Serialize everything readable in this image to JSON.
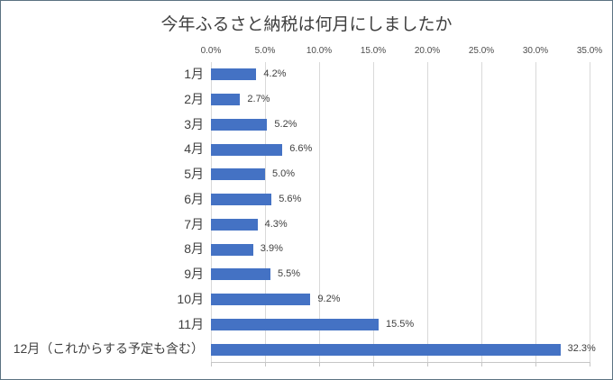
{
  "chart_data": {
    "type": "bar",
    "orientation": "horizontal",
    "title": "今年ふるさと納税は何月にしましたか",
    "categories": [
      "1月",
      "2月",
      "3月",
      "4月",
      "5月",
      "6月",
      "7月",
      "8月",
      "9月",
      "10月",
      "11月",
      "12月（これからする予定も含む）"
    ],
    "values": [
      4.2,
      2.7,
      5.2,
      6.6,
      5.0,
      5.6,
      4.3,
      3.9,
      5.5,
      9.2,
      15.5,
      32.3
    ],
    "value_labels": [
      "4.2%",
      "2.7%",
      "5.2%",
      "6.6%",
      "5.0%",
      "5.6%",
      "4.3%",
      "3.9%",
      "5.5%",
      "9.2%",
      "15.5%",
      "32.3%"
    ],
    "x_ticks": [
      "0.0%",
      "5.0%",
      "10.0%",
      "15.0%",
      "20.0%",
      "25.0%",
      "30.0%",
      "35.0%"
    ],
    "x_tick_values": [
      0,
      5,
      10,
      15,
      20,
      25,
      30,
      35
    ],
    "xlim": [
      0,
      35
    ],
    "xlabel": "",
    "ylabel": "",
    "grid": true,
    "legend": false,
    "tick_marks": "outside-bottom",
    "colors": {
      "bar": "#4472c4",
      "gridline": "#d9d9d9",
      "axis_line": "#c6c6c6",
      "text": "#404040",
      "tick_text": "#4d4d4d",
      "frame_border": "#5b7282",
      "background": "#ffffff"
    }
  }
}
